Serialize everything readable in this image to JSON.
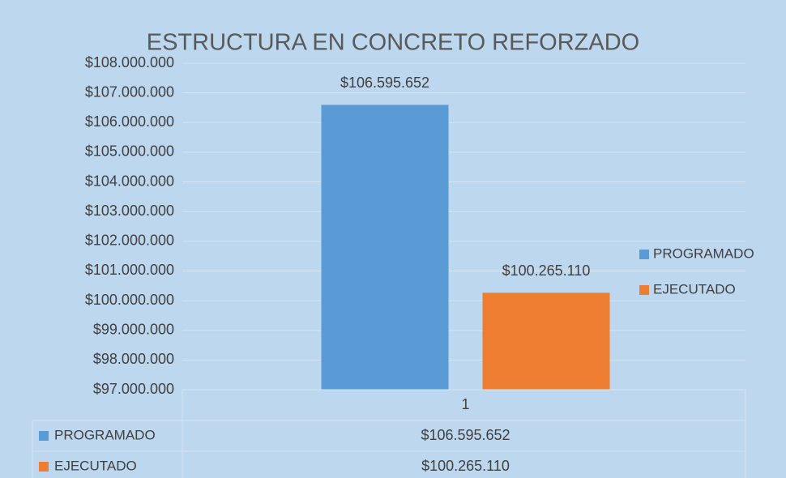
{
  "chart_data": {
    "type": "bar",
    "title": "ESTRUCTURA EN CONCRETO REFORZADO",
    "categories": [
      "1"
    ],
    "series": [
      {
        "name": "PROGRAMADO",
        "color": "#5b9bd5",
        "values": [
          106595652
        ],
        "value_labels": [
          "$106.595.652"
        ]
      },
      {
        "name": "EJECUTADO",
        "color": "#ed7d31",
        "values": [
          100265110
        ],
        "value_labels": [
          "$100.265.110"
        ]
      }
    ],
    "ylim": [
      97000000,
      108000000
    ],
    "yticks": [
      {
        "value": 97000000,
        "label": "$97.000.000"
      },
      {
        "value": 98000000,
        "label": "$98.000.000"
      },
      {
        "value": 99000000,
        "label": "$99.000.000"
      },
      {
        "value": 100000000,
        "label": "$100.000.000"
      },
      {
        "value": 101000000,
        "label": "$101.000.000"
      },
      {
        "value": 102000000,
        "label": "$102.000.000"
      },
      {
        "value": 103000000,
        "label": "$103.000.000"
      },
      {
        "value": 104000000,
        "label": "$104.000.000"
      },
      {
        "value": 105000000,
        "label": "$105.000.000"
      },
      {
        "value": 106000000,
        "label": "$106.000.000"
      },
      {
        "value": 107000000,
        "label": "$107.000.000"
      },
      {
        "value": 108000000,
        "label": "$108.000.000"
      }
    ],
    "grid": true,
    "legend": "right",
    "data_table": true
  }
}
